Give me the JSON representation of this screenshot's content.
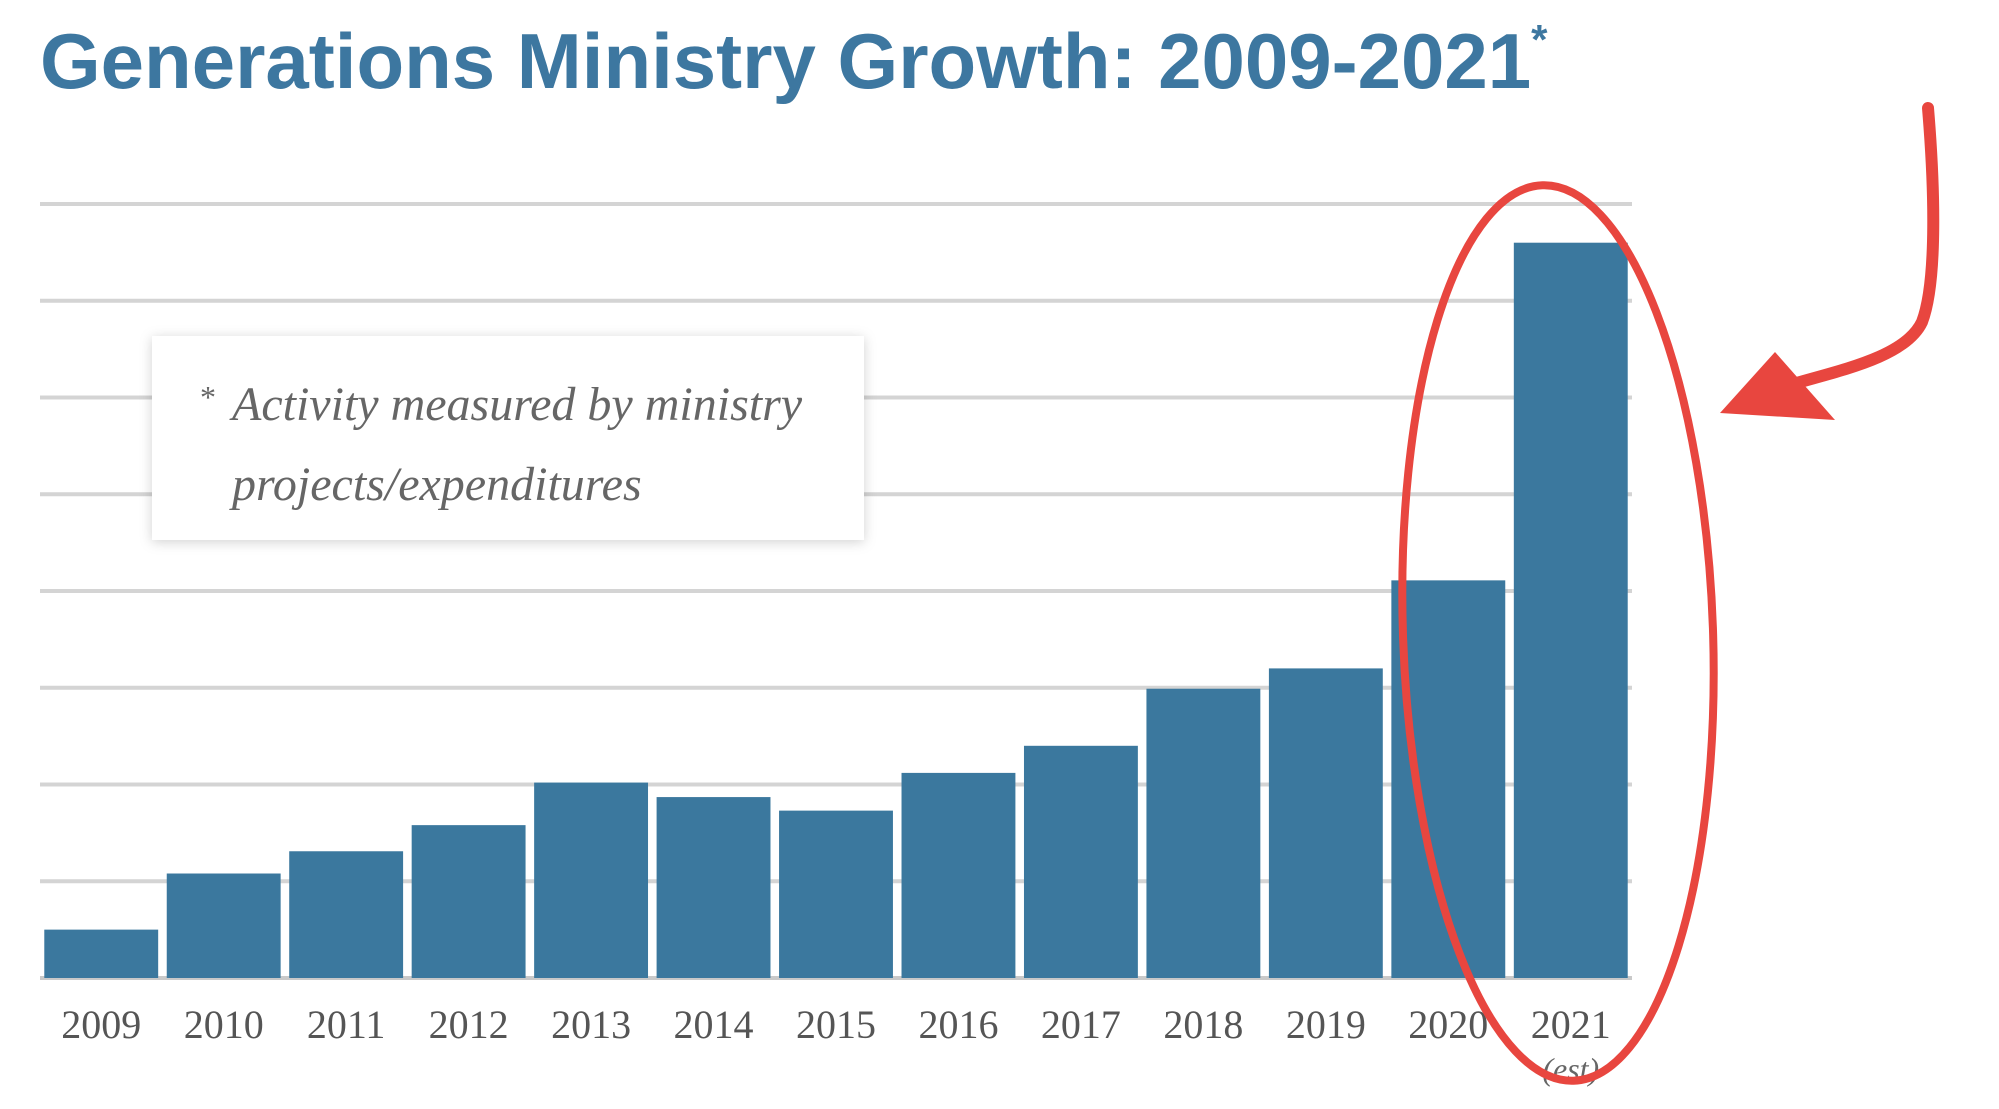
{
  "chart_data": {
    "type": "bar",
    "title": "Generations Ministry Growth: 2009-2021",
    "title_marker": "*",
    "categories": [
      "2009",
      "2010",
      "2011",
      "2012",
      "2013",
      "2014",
      "2015",
      "2016",
      "2017",
      "2018",
      "2019",
      "2020",
      "2021"
    ],
    "category_sublabels": {
      "2021": "(est)"
    },
    "values": [
      0.5,
      1.08,
      1.31,
      1.58,
      2.02,
      1.87,
      1.73,
      2.12,
      2.4,
      2.99,
      3.2,
      4.11,
      7.6
    ],
    "ylim": [
      0,
      8
    ],
    "yticks_labeled": false,
    "grid": true,
    "xlabel": "",
    "ylabel": "",
    "note": {
      "marker": "*",
      "line1": "Activity measured by ministry",
      "line2": "projects/expenditures"
    },
    "highlight": {
      "categories": [
        "2020",
        "2021"
      ],
      "shape": "ellipse",
      "arrow": true,
      "color": "#e8463f"
    },
    "colors": {
      "bar": "#3b789e",
      "title": "#3d77a0",
      "grid": "#d4d4d4",
      "annotation": "#e8463f"
    }
  }
}
